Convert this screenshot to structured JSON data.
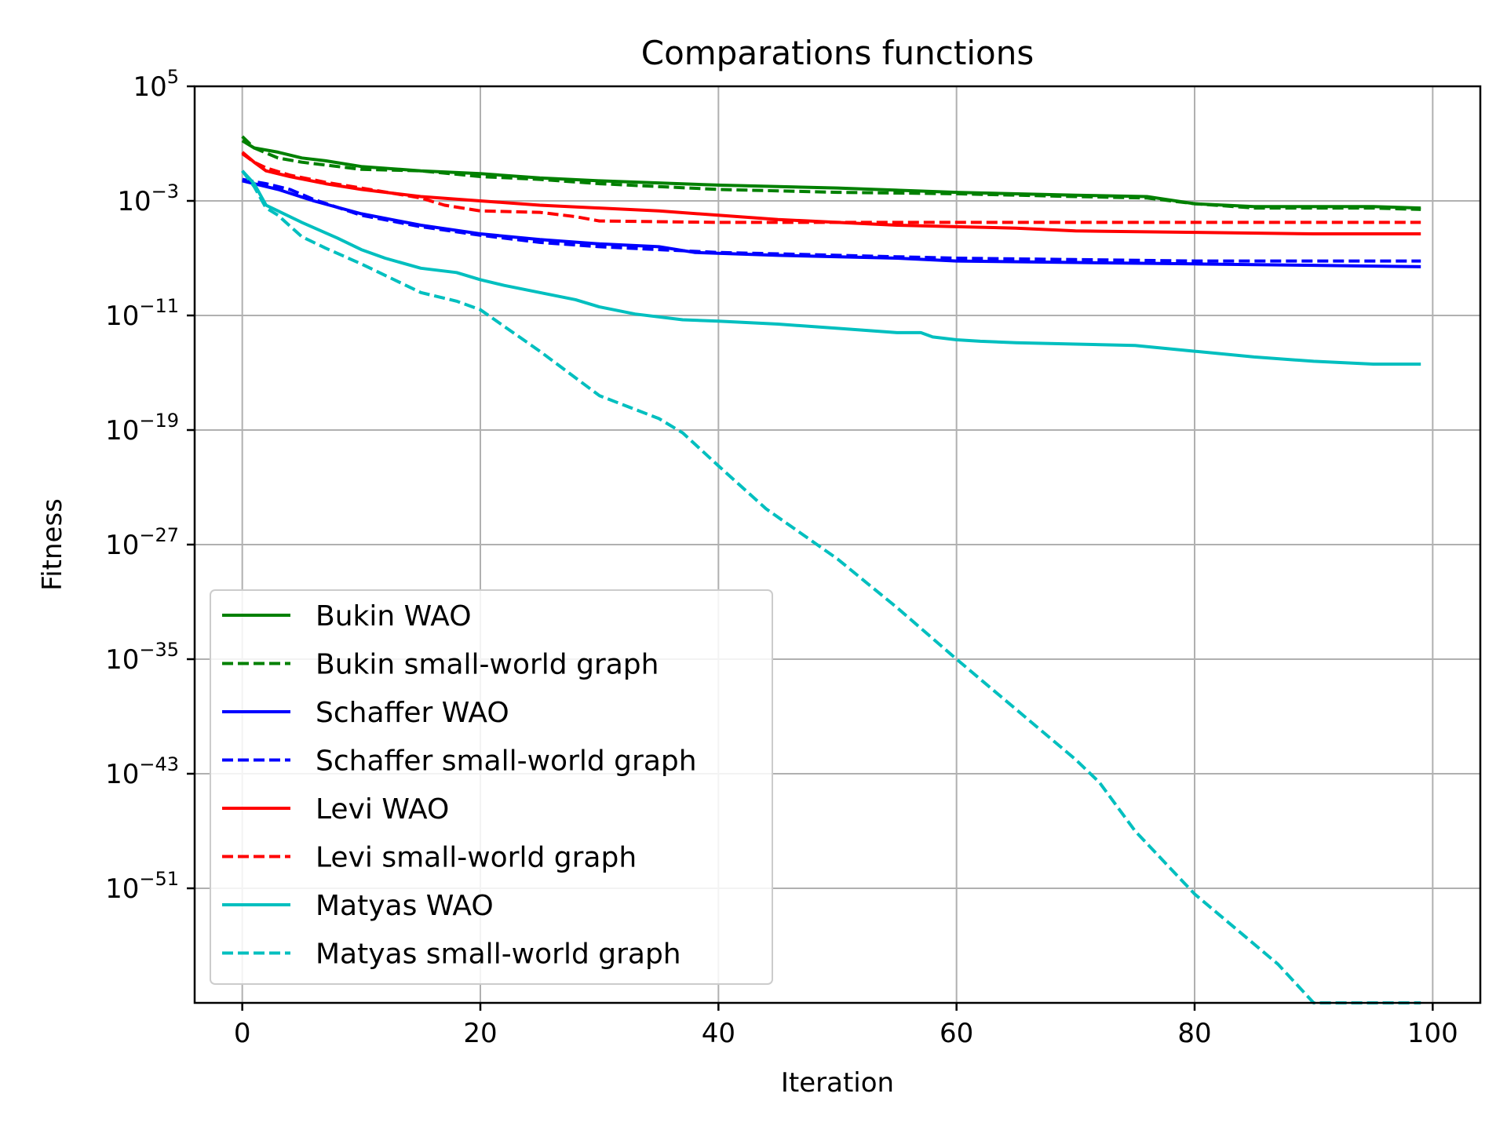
{
  "chart_data": {
    "type": "line",
    "title": "Comparations functions",
    "xlabel": "Iteration",
    "ylabel": "Fitness",
    "yscale": "log",
    "xlim": [
      -4,
      104
    ],
    "ylim_exponent": [
      -59,
      5
    ],
    "grid": true,
    "legend_position": "lower-left",
    "x_ticks": [
      0,
      20,
      40,
      60,
      80,
      100
    ],
    "x_tick_labels": [
      "0",
      "20",
      "40",
      "60",
      "80",
      "100"
    ],
    "y_ticks_exponent": [
      5,
      -3,
      -11,
      -19,
      -27,
      -35,
      -43,
      -51
    ],
    "y_tick_base": "10",
    "y_tick_exponent_labels": [
      "5",
      "−3",
      "−11",
      "−19",
      "−27",
      "−35",
      "−43",
      "−51"
    ],
    "series": [
      {
        "name": "Bukin WAO",
        "color": "#008000",
        "style": "solid",
        "x": [
          0,
          1,
          3,
          5,
          7,
          10,
          15,
          20,
          25,
          30,
          40,
          50,
          60,
          70,
          76,
          80,
          85,
          90,
          95,
          99
        ],
        "log10_y": [
          1.2,
          0.7,
          0.4,
          0.0,
          -0.2,
          -0.6,
          -0.9,
          -1.1,
          -1.4,
          -1.6,
          -1.9,
          -2.1,
          -2.4,
          -2.6,
          -2.7,
          -3.2,
          -3.4,
          -3.4,
          -3.4,
          -3.5
        ]
      },
      {
        "name": "Bukin small-world graph",
        "color": "#008000",
        "style": "dashed",
        "x": [
          0,
          1,
          3,
          5,
          10,
          15,
          20,
          25,
          30,
          40,
          50,
          60,
          70,
          76,
          80,
          85,
          90,
          95,
          99
        ],
        "log10_y": [
          1.5,
          0.7,
          0.0,
          -0.3,
          -0.8,
          -0.9,
          -1.3,
          -1.5,
          -1.8,
          -2.2,
          -2.4,
          -2.5,
          -2.7,
          -2.8,
          -3.2,
          -3.5,
          -3.5,
          -3.5,
          -3.6
        ]
      },
      {
        "name": "Schaffer WAO",
        "color": "#0000ff",
        "style": "solid",
        "x": [
          0,
          3,
          6,
          10,
          15,
          20,
          25,
          30,
          35,
          38,
          45,
          55,
          60,
          70,
          80,
          90,
          99
        ],
        "log10_y": [
          -1.6,
          -2.2,
          -3.0,
          -3.9,
          -4.7,
          -5.3,
          -5.7,
          -6.0,
          -6.2,
          -6.6,
          -6.8,
          -7.0,
          -7.2,
          -7.3,
          -7.4,
          -7.5,
          -7.6
        ]
      },
      {
        "name": "Schaffer small-world graph",
        "color": "#0000ff",
        "style": "dashed",
        "x": [
          0,
          2,
          4,
          6,
          10,
          15,
          20,
          25,
          30,
          35,
          40,
          45,
          55,
          60,
          70,
          80,
          90,
          99
        ],
        "log10_y": [
          -1.5,
          -1.8,
          -2.2,
          -2.9,
          -4.0,
          -4.8,
          -5.4,
          -5.9,
          -6.2,
          -6.4,
          -6.6,
          -6.7,
          -6.9,
          -7.0,
          -7.1,
          -7.2,
          -7.2,
          -7.2
        ]
      },
      {
        "name": "Levi WAO",
        "color": "#ff0000",
        "style": "solid",
        "x": [
          0,
          1,
          2,
          4,
          7,
          10,
          15,
          20,
          25,
          30,
          35,
          40,
          45,
          50,
          55,
          60,
          65,
          70,
          80,
          90,
          99
        ],
        "log10_y": [
          0.4,
          -0.3,
          -0.9,
          -1.3,
          -1.8,
          -2.2,
          -2.7,
          -3.0,
          -3.3,
          -3.5,
          -3.7,
          -4.0,
          -4.3,
          -4.5,
          -4.7,
          -4.8,
          -4.9,
          -5.1,
          -5.2,
          -5.3,
          -5.3
        ]
      },
      {
        "name": "Levi small-world graph",
        "color": "#ff0000",
        "style": "dashed",
        "x": [
          0,
          1,
          2,
          4,
          7,
          10,
          15,
          17,
          20,
          25,
          28,
          30,
          40,
          50,
          60,
          70,
          80,
          90,
          99
        ],
        "log10_y": [
          0.3,
          -0.3,
          -0.7,
          -1.2,
          -1.7,
          -2.1,
          -2.8,
          -3.3,
          -3.7,
          -3.8,
          -4.1,
          -4.4,
          -4.5,
          -4.5,
          -4.5,
          -4.5,
          -4.5,
          -4.5,
          -4.5
        ]
      },
      {
        "name": "Matyas WAO",
        "color": "#00bfbf",
        "style": "solid",
        "x": [
          0,
          1,
          2,
          3,
          5,
          8,
          10,
          12,
          15,
          18,
          20,
          22,
          25,
          28,
          30,
          33,
          37,
          40,
          45,
          50,
          55,
          57,
          58,
          60,
          62,
          65,
          70,
          75,
          80,
          85,
          90,
          95,
          99
        ],
        "log10_y": [
          -0.9,
          -1.8,
          -3.3,
          -3.7,
          -4.5,
          -5.6,
          -6.4,
          -7.0,
          -7.7,
          -8.0,
          -8.5,
          -8.9,
          -9.4,
          -9.9,
          -10.4,
          -10.9,
          -11.3,
          -11.4,
          -11.6,
          -11.9,
          -12.2,
          -12.2,
          -12.5,
          -12.7,
          -12.8,
          -12.9,
          -13.0,
          -13.1,
          -13.5,
          -13.9,
          -14.2,
          -14.4,
          -14.4
        ]
      },
      {
        "name": "Matyas small-world graph",
        "color": "#00bfbf",
        "style": "dashed",
        "x": [
          0,
          1,
          2,
          3,
          5,
          7,
          10,
          15,
          18,
          20,
          25,
          30,
          35,
          37,
          40,
          44,
          50,
          55,
          60,
          65,
          70,
          72,
          75,
          80,
          87,
          90,
          95,
          99
        ],
        "log10_y": [
          -0.9,
          -2.0,
          -3.5,
          -4.0,
          -5.5,
          -6.3,
          -7.4,
          -9.4,
          -10.0,
          -10.6,
          -13.5,
          -16.6,
          -18.2,
          -19.2,
          -21.5,
          -24.5,
          -28.0,
          -31.4,
          -35.0,
          -38.5,
          -42.0,
          -43.6,
          -47.0,
          -51.4,
          -56.3,
          -61.2,
          -65.0,
          -68.7
        ]
      }
    ]
  }
}
